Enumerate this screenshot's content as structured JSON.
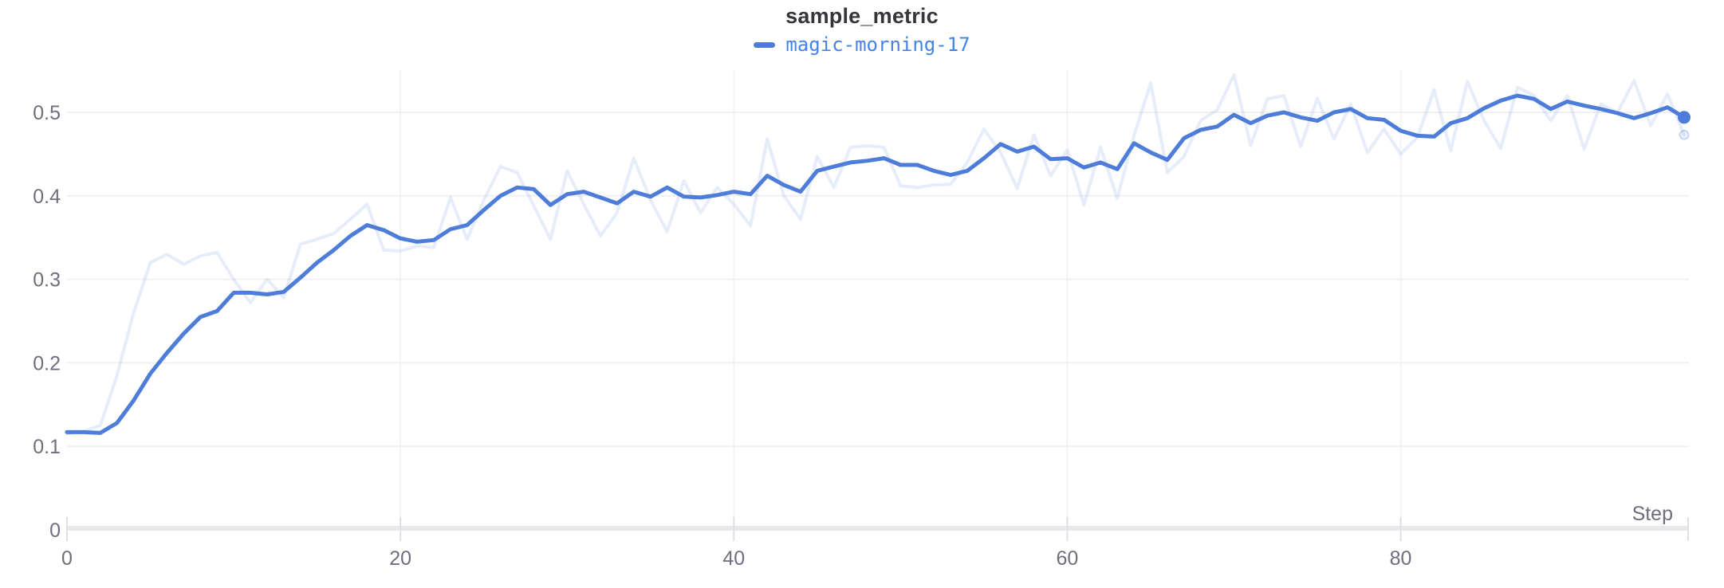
{
  "chart_data": {
    "type": "line",
    "title": "sample_metric",
    "xlabel": "Step",
    "legend": [
      {
        "label": "magic-morning-17",
        "color": "#4d7dd9",
        "text_color": "#4583ea"
      }
    ],
    "x": [
      0,
      1,
      2,
      3,
      4,
      5,
      6,
      7,
      8,
      9,
      10,
      11,
      12,
      13,
      14,
      15,
      16,
      17,
      18,
      19,
      20,
      21,
      22,
      23,
      24,
      25,
      26,
      27,
      28,
      29,
      30,
      31,
      32,
      33,
      34,
      35,
      36,
      37,
      38,
      39,
      40,
      41,
      42,
      43,
      44,
      45,
      46,
      47,
      48,
      49,
      50,
      51,
      52,
      53,
      54,
      55,
      56,
      57,
      58,
      59,
      60,
      61,
      62,
      63,
      64,
      65,
      66,
      67,
      68,
      69,
      70,
      71,
      72,
      73,
      74,
      75,
      76,
      77,
      78,
      79,
      80,
      81,
      82,
      83,
      84,
      85,
      86,
      87,
      88,
      89,
      90,
      91,
      92,
      93,
      94,
      95,
      96,
      97
    ],
    "series": [
      {
        "name": "magic-morning-17",
        "role": "raw",
        "color": "rgba(77,125,217,0.14)",
        "line_width": 4,
        "end_marker": "ring",
        "values": [
          0.115,
          0.118,
          0.125,
          0.185,
          0.26,
          0.32,
          0.33,
          0.318,
          0.328,
          0.332,
          0.3,
          0.272,
          0.3,
          0.278,
          0.342,
          0.348,
          0.355,
          0.372,
          0.39,
          0.335,
          0.334,
          0.34,
          0.338,
          0.398,
          0.348,
          0.395,
          0.435,
          0.428,
          0.388,
          0.348,
          0.43,
          0.39,
          0.352,
          0.38,
          0.445,
          0.395,
          0.357,
          0.418,
          0.38,
          0.41,
          0.39,
          0.364,
          0.468,
          0.4,
          0.372,
          0.447,
          0.41,
          0.458,
          0.46,
          0.458,
          0.412,
          0.41,
          0.413,
          0.414,
          0.44,
          0.48,
          0.452,
          0.409,
          0.473,
          0.424,
          0.455,
          0.389,
          0.458,
          0.397,
          0.472,
          0.535,
          0.428,
          0.447,
          0.49,
          0.503,
          0.545,
          0.46,
          0.516,
          0.52,
          0.459,
          0.517,
          0.468,
          0.51,
          0.452,
          0.48,
          0.45,
          0.47,
          0.527,
          0.454,
          0.537,
          0.49,
          0.457,
          0.53,
          0.52,
          0.49,
          0.52,
          0.456,
          0.51,
          0.5,
          0.538,
          0.484,
          0.522,
          0.473
        ]
      },
      {
        "name": "magic-morning-17",
        "role": "smoothed",
        "color": "#4d7dd9",
        "line_width": 5,
        "end_marker": "dot",
        "values": [
          0.117,
          0.117,
          0.116,
          0.128,
          0.155,
          0.187,
          0.212,
          0.235,
          0.255,
          0.262,
          0.284,
          0.284,
          0.282,
          0.285,
          0.302,
          0.32,
          0.335,
          0.352,
          0.365,
          0.359,
          0.349,
          0.345,
          0.347,
          0.36,
          0.365,
          0.383,
          0.4,
          0.41,
          0.408,
          0.389,
          0.402,
          0.405,
          0.398,
          0.391,
          0.405,
          0.399,
          0.41,
          0.399,
          0.398,
          0.401,
          0.405,
          0.402,
          0.424,
          0.413,
          0.405,
          0.43,
          0.435,
          0.44,
          0.442,
          0.445,
          0.437,
          0.437,
          0.43,
          0.425,
          0.43,
          0.445,
          0.462,
          0.453,
          0.459,
          0.444,
          0.445,
          0.434,
          0.44,
          0.432,
          0.463,
          0.452,
          0.443,
          0.469,
          0.479,
          0.483,
          0.497,
          0.487,
          0.496,
          0.5,
          0.494,
          0.49,
          0.5,
          0.504,
          0.493,
          0.491,
          0.478,
          0.472,
          0.471,
          0.487,
          0.493,
          0.505,
          0.514,
          0.52,
          0.516,
          0.504,
          0.513,
          0.508,
          0.504,
          0.499,
          0.493,
          0.499,
          0.506,
          0.494
        ]
      }
    ],
    "xticks": [
      0,
      20,
      40,
      60,
      80
    ],
    "yticks": [
      0,
      0.1,
      0.2,
      0.3,
      0.4,
      0.5
    ],
    "xlim": [
      0,
      97
    ],
    "ylim": [
      0,
      0.55
    ],
    "grid": true,
    "legend_position": "top-center",
    "colors": {
      "grid_line": "#f0f0f3",
      "grid_line_vertical": "#f3f3f6",
      "axis_line": "#e8e8ec",
      "tick_mark": "#dfdfe4",
      "tick_label": "#6e6e7e",
      "title": "#35363b"
    }
  }
}
